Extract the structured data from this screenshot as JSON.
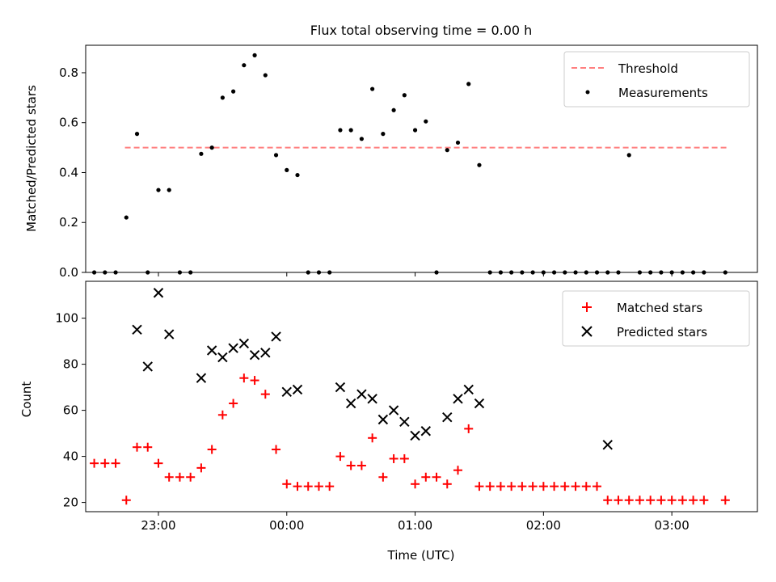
{
  "title": "Flux total observing time = 0.00 h",
  "chart_data": [
    {
      "type": "scatter",
      "ylabel": "Matched/Predicted stars",
      "xlabel": "",
      "ylim": [
        0,
        0.91
      ],
      "xlim": [
        "22:26",
        "03:40"
      ],
      "x_ticks": [
        "23:00",
        "00:00",
        "01:00",
        "02:00",
        "03:00"
      ],
      "y_ticks": [
        "0.0",
        "0.2",
        "0.4",
        "0.6",
        "0.8"
      ],
      "y_tick_values": [
        0,
        0.2,
        0.4,
        0.6,
        0.8
      ],
      "grid": false,
      "legend_position": "upper-right",
      "series": [
        {
          "name": "Threshold",
          "kind": "dashed-line",
          "color": "#ff7f7f",
          "x": [
            "22:30",
            "03:40"
          ],
          "y": [
            0.5,
            0.5
          ]
        },
        {
          "name": "Measurements",
          "kind": "dot",
          "color": "#000000",
          "x": [
            "22:30",
            "22:35",
            "22:40",
            "22:45",
            "22:50",
            "22:55",
            "23:00",
            "23:05",
            "23:10",
            "23:15",
            "23:20",
            "23:25",
            "23:30",
            "23:35",
            "23:40",
            "23:45",
            "23:50",
            "23:55",
            "00:00",
            "00:05",
            "00:10",
            "00:15",
            "00:20",
            "00:25",
            "00:30",
            "00:35",
            "00:40",
            "00:45",
            "00:50",
            "00:55",
            "01:00",
            "01:05",
            "01:10",
            "01:15",
            "01:20",
            "01:25",
            "01:30",
            "01:35",
            "01:40",
            "01:45",
            "01:50",
            "01:55",
            "02:00",
            "02:05",
            "02:10",
            "02:15",
            "02:20",
            "02:25",
            "02:30",
            "02:35",
            "02:40",
            "02:45",
            "02:50",
            "02:55",
            "03:00",
            "03:05",
            "03:10",
            "03:15",
            "03:25"
          ],
          "y": [
            0,
            0,
            0,
            0.22,
            0.555,
            0,
            0.33,
            0.33,
            0,
            0,
            0.475,
            0.5,
            0.7,
            0.725,
            0.83,
            0.87,
            0.79,
            0.47,
            0.41,
            0.39,
            0,
            0,
            0,
            0.57,
            0.57,
            0.535,
            0.735,
            0.555,
            0.65,
            0.71,
            0.57,
            0.605,
            0,
            0.49,
            0.52,
            0.755,
            0.43,
            0,
            0,
            0,
            0,
            0,
            0,
            0,
            0,
            0,
            0,
            0,
            0,
            0,
            0.47,
            0,
            0,
            0,
            0,
            0,
            0,
            0,
            0
          ]
        }
      ]
    },
    {
      "type": "scatter",
      "ylabel": "Count",
      "xlabel": "Time (UTC)",
      "ylim": [
        16,
        116
      ],
      "xlim": [
        "22:26",
        "03:40"
      ],
      "x_ticks": [
        "23:00",
        "00:00",
        "01:00",
        "02:00",
        "03:00"
      ],
      "y_ticks": [
        "20",
        "40",
        "60",
        "80",
        "100"
      ],
      "y_tick_values": [
        20,
        40,
        60,
        80,
        100
      ],
      "grid": false,
      "legend_position": "upper-right",
      "series": [
        {
          "name": "Matched stars",
          "kind": "plus",
          "color": "#ff0000",
          "x": [
            "22:30",
            "22:35",
            "22:40",
            "22:45",
            "22:50",
            "22:55",
            "23:00",
            "23:05",
            "23:10",
            "23:15",
            "23:20",
            "23:25",
            "23:30",
            "23:35",
            "23:40",
            "23:45",
            "23:50",
            "23:55",
            "00:00",
            "00:05",
            "00:10",
            "00:15",
            "00:20",
            "00:25",
            "00:30",
            "00:35",
            "00:40",
            "00:45",
            "00:50",
            "00:55",
            "01:00",
            "01:05",
            "01:10",
            "01:15",
            "01:20",
            "01:25",
            "01:30",
            "01:35",
            "01:40",
            "01:45",
            "01:50",
            "01:55",
            "02:00",
            "02:05",
            "02:10",
            "02:15",
            "02:20",
            "02:25",
            "02:30",
            "02:35",
            "02:40",
            "02:45",
            "02:50",
            "02:55",
            "03:00",
            "03:05",
            "03:10",
            "03:15",
            "03:25"
          ],
          "y": [
            37,
            37,
            37,
            21,
            44,
            44,
            37,
            31,
            31,
            31,
            35,
            43,
            58,
            63,
            74,
            73,
            67,
            43,
            28,
            27,
            27,
            27,
            27,
            40,
            36,
            36,
            48,
            31,
            39,
            39,
            28,
            31,
            31,
            28,
            34,
            52,
            27,
            27,
            27,
            27,
            27,
            27,
            27,
            27,
            27,
            27,
            27,
            27,
            21,
            21,
            21,
            21,
            21,
            21,
            21,
            21,
            21,
            21,
            21
          ]
        },
        {
          "name": "Predicted stars",
          "kind": "cross",
          "color": "#000000",
          "x": [
            "22:50",
            "22:55",
            "23:00",
            "23:05",
            "23:20",
            "23:25",
            "23:30",
            "23:35",
            "23:40",
            "23:45",
            "23:50",
            "23:55",
            "00:00",
            "00:05",
            "00:25",
            "00:30",
            "00:35",
            "00:40",
            "00:45",
            "00:50",
            "00:55",
            "01:00",
            "01:05",
            "01:15",
            "01:20",
            "01:25",
            "01:30",
            "02:30"
          ],
          "y": [
            95,
            79,
            111,
            93,
            74,
            86,
            83,
            87,
            89,
            84,
            85,
            92,
            68,
            69,
            70,
            63,
            67,
            65,
            56,
            60,
            55,
            49,
            51,
            57,
            65,
            69,
            63,
            45
          ]
        }
      ]
    }
  ]
}
